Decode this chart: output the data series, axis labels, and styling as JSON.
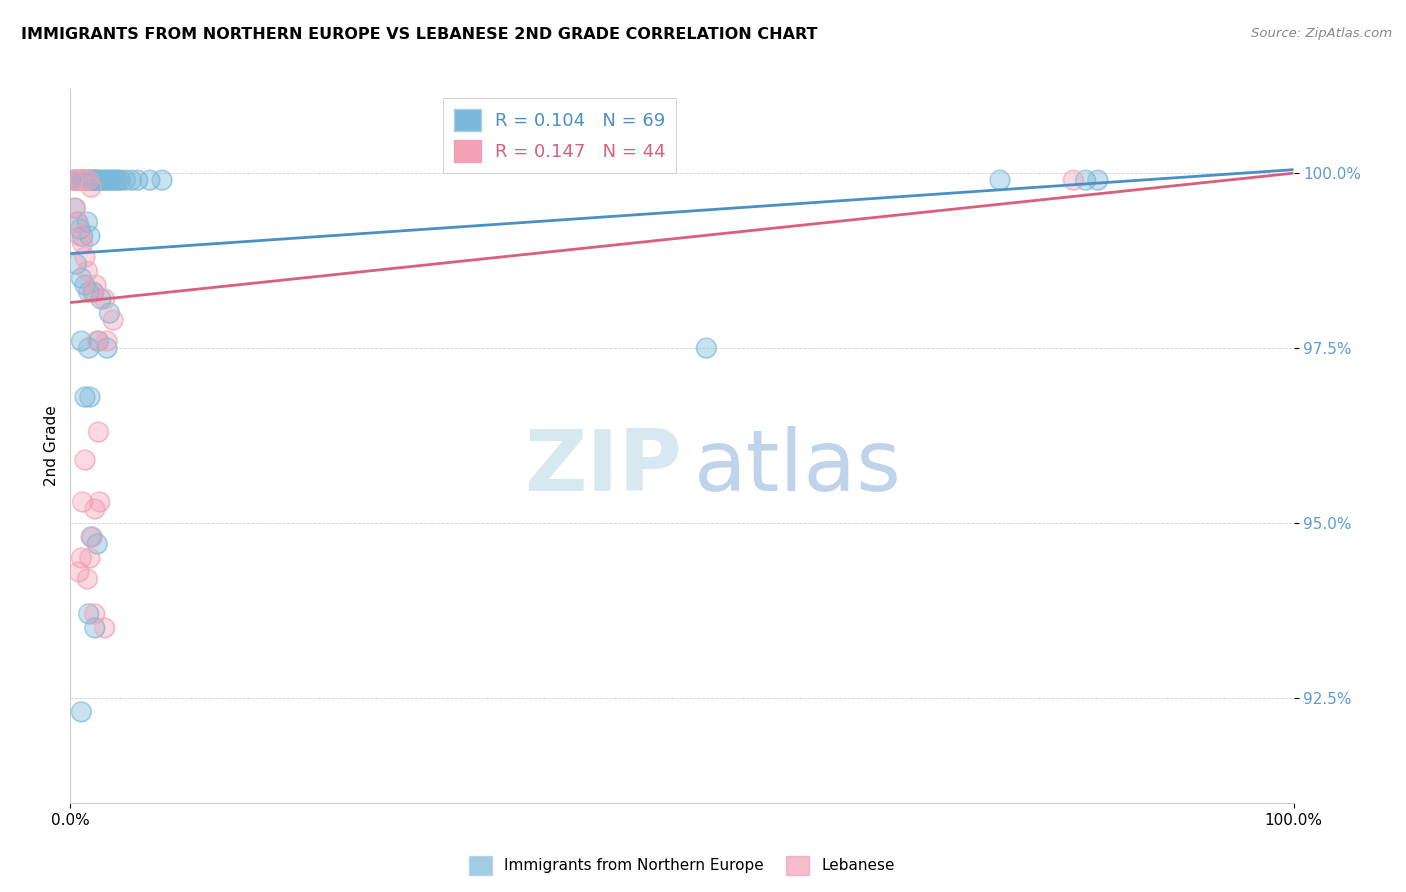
{
  "title": "IMMIGRANTS FROM NORTHERN EUROPE VS LEBANESE 2ND GRADE CORRELATION CHART",
  "source": "Source: ZipAtlas.com",
  "ylabel": "2nd Grade",
  "blue_R": 0.104,
  "blue_N": 69,
  "pink_R": 0.147,
  "pink_N": 44,
  "y_ticks": [
    92.5,
    95.0,
    97.5,
    100.0
  ],
  "x_range": [
    0.0,
    100.0
  ],
  "y_range": [
    91.0,
    101.2
  ],
  "blue_color": "#7ab8d9",
  "pink_color": "#f4a0b5",
  "blue_line_color": "#4a90c4",
  "pink_line_color": "#d9607a",
  "blue_line": [
    0,
    98.85,
    100,
    100.05
  ],
  "pink_line": [
    0,
    98.15,
    100,
    100.0
  ],
  "blue_points": [
    [
      0.3,
      99.9
    ],
    [
      0.5,
      99.9
    ],
    [
      0.7,
      99.9
    ],
    [
      0.9,
      99.9
    ],
    [
      1.0,
      99.9
    ],
    [
      1.1,
      99.9
    ],
    [
      1.2,
      99.9
    ],
    [
      1.3,
      99.9
    ],
    [
      1.4,
      99.9
    ],
    [
      1.5,
      99.9
    ],
    [
      1.6,
      99.9
    ],
    [
      1.7,
      99.9
    ],
    [
      1.8,
      99.9
    ],
    [
      1.9,
      99.9
    ],
    [
      2.0,
      99.9
    ],
    [
      2.1,
      99.9
    ],
    [
      2.2,
      99.9
    ],
    [
      2.3,
      99.9
    ],
    [
      2.5,
      99.9
    ],
    [
      2.7,
      99.9
    ],
    [
      2.9,
      99.9
    ],
    [
      3.1,
      99.9
    ],
    [
      3.3,
      99.9
    ],
    [
      3.5,
      99.9
    ],
    [
      3.7,
      99.9
    ],
    [
      3.9,
      99.9
    ],
    [
      4.1,
      99.9
    ],
    [
      4.5,
      99.9
    ],
    [
      5.0,
      99.9
    ],
    [
      5.5,
      99.9
    ],
    [
      6.5,
      99.9
    ],
    [
      7.5,
      99.9
    ],
    [
      0.4,
      99.5
    ],
    [
      0.6,
      99.3
    ],
    [
      0.8,
      99.2
    ],
    [
      1.0,
      99.1
    ],
    [
      1.4,
      99.3
    ],
    [
      1.6,
      99.1
    ],
    [
      0.5,
      98.7
    ],
    [
      0.9,
      98.5
    ],
    [
      1.2,
      98.4
    ],
    [
      1.5,
      98.3
    ],
    [
      1.9,
      98.3
    ],
    [
      2.5,
      98.2
    ],
    [
      3.2,
      98.0
    ],
    [
      0.9,
      97.6
    ],
    [
      1.5,
      97.5
    ],
    [
      2.3,
      97.6
    ],
    [
      3.0,
      97.5
    ],
    [
      1.2,
      96.8
    ],
    [
      1.6,
      96.8
    ],
    [
      1.7,
      94.8
    ],
    [
      2.2,
      94.7
    ],
    [
      1.5,
      93.7
    ],
    [
      2.0,
      93.5
    ],
    [
      0.9,
      92.3
    ],
    [
      52.0,
      97.5
    ],
    [
      76.0,
      99.9
    ],
    [
      83.0,
      99.9
    ],
    [
      84.0,
      99.9
    ]
  ],
  "pink_points": [
    [
      0.2,
      99.9
    ],
    [
      0.3,
      99.9
    ],
    [
      0.5,
      99.9
    ],
    [
      0.7,
      99.9
    ],
    [
      0.9,
      99.9
    ],
    [
      1.1,
      99.9
    ],
    [
      1.3,
      99.9
    ],
    [
      1.5,
      99.9
    ],
    [
      1.7,
      99.8
    ],
    [
      0.4,
      99.5
    ],
    [
      0.6,
      99.3
    ],
    [
      0.8,
      99.1
    ],
    [
      1.0,
      99.0
    ],
    [
      1.2,
      98.8
    ],
    [
      1.4,
      98.6
    ],
    [
      1.8,
      98.3
    ],
    [
      2.1,
      98.4
    ],
    [
      2.8,
      98.2
    ],
    [
      3.5,
      97.9
    ],
    [
      2.2,
      97.6
    ],
    [
      3.0,
      97.6
    ],
    [
      2.3,
      96.3
    ],
    [
      2.0,
      95.2
    ],
    [
      2.4,
      95.3
    ],
    [
      1.8,
      94.8
    ],
    [
      1.6,
      94.5
    ],
    [
      1.4,
      94.2
    ],
    [
      1.2,
      95.9
    ],
    [
      1.0,
      95.3
    ],
    [
      0.9,
      94.5
    ],
    [
      0.7,
      94.3
    ],
    [
      2.0,
      93.7
    ],
    [
      2.8,
      93.5
    ],
    [
      82.0,
      99.9
    ]
  ]
}
